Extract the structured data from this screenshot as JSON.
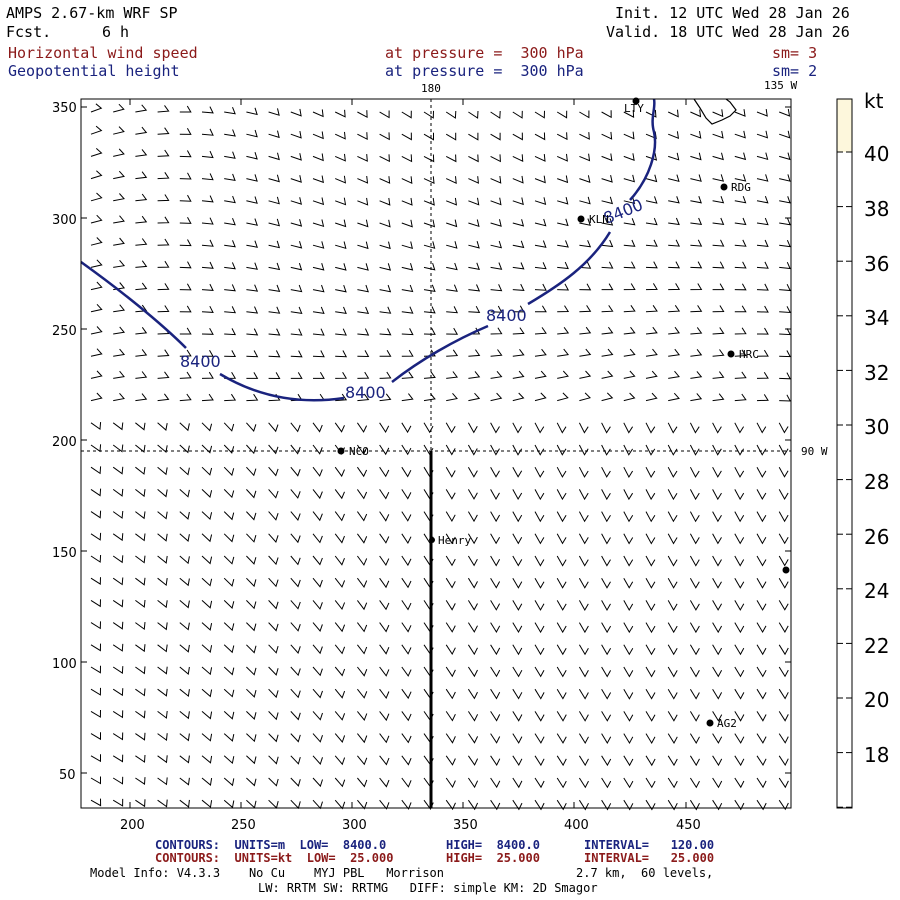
{
  "header": {
    "model": "AMPS 2.67-km WRF SP",
    "fcst_label": "Fcst.",
    "fcst_value": "6 h",
    "init": "Init. 12 UTC Wed 28 Jan 26",
    "valid": "Valid. 18 UTC Wed 28 Jan 26",
    "field1": {
      "name": "Horizontal wind speed",
      "level": "at pressure =  300 hPa",
      "sm": "sm= 3"
    },
    "field2": {
      "name": "Geopotential height",
      "level": "at pressure =  300 hPa",
      "sm": "sm= 2"
    }
  },
  "map": {
    "longitude_labels": {
      "top_180": "180",
      "top_135w": "135 W",
      "right_90w": "90 W"
    },
    "x_ticks": [
      "200",
      "250",
      "300",
      "350",
      "400",
      "450"
    ],
    "y_ticks": [
      "350",
      "300",
      "250",
      "200",
      "150",
      "100",
      "50"
    ],
    "contour_label": "8400",
    "stations": [
      {
        "id": "LTY",
        "label": "LTY"
      },
      {
        "id": "RDG",
        "label": "RDG"
      },
      {
        "id": "KLN",
        "label": "KLN"
      },
      {
        "id": "HRC",
        "label": "HRC"
      },
      {
        "id": "NCO",
        "label": "NCO"
      },
      {
        "id": "Henry",
        "label": "Henry"
      },
      {
        "id": "AG2",
        "label": "AG2"
      },
      {
        "id": "edge",
        "label": ""
      }
    ]
  },
  "colorbar": {
    "unit": "kt",
    "labels": [
      "40",
      "38",
      "36",
      "34",
      "32",
      "30",
      "28",
      "26",
      "24",
      "22",
      "20",
      "18"
    ],
    "top_color": "#fdf7dc"
  },
  "footer": {
    "line1": {
      "a": "CONTOURS:  UNITS=m  LOW=  8400.0",
      "b": "HIGH=  8400.0",
      "c": "INTERVAL=   120.00"
    },
    "line2": {
      "a": "CONTOURS:  UNITS=kt  LOW=  25.000",
      "b": "HIGH=  25.000",
      "c": "INTERVAL=   25.000"
    },
    "model_info": "Model Info: V4.3.3    No Cu    MYJ PBL   Morrison",
    "resolution": "2.7 km,  60 levels,",
    "physics": "LW: RRTM SW: RRTMG   DIFF: simple KM: 2D Smagor"
  },
  "colors": {
    "contour": "#1a237e",
    "header_red": "#8b1a1a",
    "header_blue": "#1a237e"
  }
}
